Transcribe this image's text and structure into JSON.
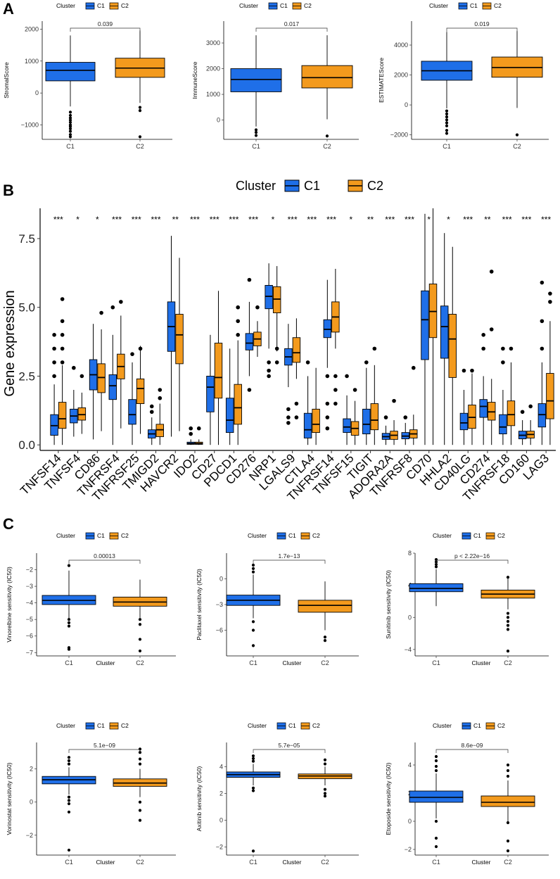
{
  "colors": {
    "C1": "#1f6fe8",
    "C2": "#f39a1d",
    "line": "#000000"
  },
  "legend": {
    "title": "Cluster",
    "labels": [
      "C1",
      "C2"
    ]
  },
  "chart_data": [
    {
      "id": "A1",
      "panel": "A",
      "type": "box",
      "ylabel": "StromalScore",
      "xlabel": "",
      "categories": [
        "C1",
        "C2"
      ],
      "ylim": [
        -1450,
        2250
      ],
      "yticks": [
        -1000,
        0,
        1000,
        2000
      ],
      "pvalue": "0.039",
      "boxes": [
        {
          "group": "C1",
          "q1": 380,
          "median": 710,
          "q3": 960,
          "lower": -420,
          "upper": 1800,
          "outliers": [
            -600,
            -700,
            -780,
            -850,
            -920,
            -1000,
            -1050,
            -1120,
            -1200,
            -1300,
            -1370
          ]
        },
        {
          "group": "C2",
          "q1": 490,
          "median": 780,
          "q3": 1090,
          "lower": -310,
          "upper": 1960,
          "outliers": [
            -450,
            -550,
            -1370
          ]
        }
      ]
    },
    {
      "id": "A2",
      "panel": "A",
      "type": "box",
      "ylabel": "ImmuneScore",
      "xlabel": "",
      "categories": [
        "C1",
        "C2"
      ],
      "ylim": [
        -750,
        3850
      ],
      "yticks": [
        0,
        1000,
        2000,
        3000
      ],
      "pvalue": "0.017",
      "boxes": [
        {
          "group": "C1",
          "q1": 1100,
          "median": 1580,
          "q3": 2000,
          "lower": -250,
          "upper": 3300,
          "outliers": [
            -380,
            -480,
            -600
          ]
        },
        {
          "group": "C2",
          "q1": 1250,
          "median": 1650,
          "q3": 2120,
          "lower": 30,
          "upper": 3300,
          "outliers": [
            -620
          ]
        }
      ]
    },
    {
      "id": "A3",
      "panel": "A",
      "type": "box",
      "ylabel": "ESTIMATEScore",
      "xlabel": "",
      "categories": [
        "C1",
        "C2"
      ],
      "ylim": [
        -2300,
        5600
      ],
      "yticks": [
        -2000,
        0,
        2000,
        4000
      ],
      "pvalue": "0.019",
      "boxes": [
        {
          "group": "C1",
          "q1": 1650,
          "median": 2280,
          "q3": 2920,
          "lower": -230,
          "upper": 4880,
          "outliers": [
            -400,
            -600,
            -800,
            -1000,
            -1200,
            -1400,
            -1700,
            -1900
          ]
        },
        {
          "group": "C2",
          "q1": 1850,
          "median": 2500,
          "q3": 3200,
          "lower": -200,
          "upper": 4950,
          "outliers": [
            -2000
          ]
        }
      ]
    },
    {
      "id": "B",
      "panel": "B",
      "type": "grouped-box",
      "ylabel": "Gene expression",
      "xlabel": "",
      "ylim": [
        -0.2,
        8.6
      ],
      "yticks": [
        0.0,
        2.5,
        5.0,
        7.5
      ],
      "genes": [
        "TNFSF14",
        "TNFSF4",
        "CD86",
        "TNFRSF4",
        "TNFRSF25",
        "TMIGD2",
        "HAVCR2",
        "IDO2",
        "CD27",
        "PDCD1",
        "CD276",
        "NRP1",
        "LGALS9",
        "CTLA4",
        "TNFRSF14",
        "TNFSF15",
        "TIGIT",
        "ADORA2A",
        "TNFRSF8",
        "CD70",
        "HHLA2",
        "CD40LG",
        "CD274",
        "TNFRSF18",
        "CD160",
        "LAG3"
      ],
      "significance": [
        "***",
        "*",
        "*",
        "***",
        "***",
        "***",
        "**",
        "***",
        "***",
        "***",
        "***",
        "*",
        "***",
        "***",
        "***",
        "*",
        "**",
        "***",
        "***",
        "*",
        "*",
        "***",
        "**",
        "***",
        "***",
        "***"
      ],
      "series": [
        {
          "name": "C1",
          "q1": [
            0.35,
            0.8,
            2.0,
            1.65,
            0.75,
            0.25,
            3.4,
            0.02,
            1.2,
            0.45,
            3.45,
            4.95,
            2.9,
            0.25,
            3.9,
            0.45,
            0.4,
            0.2,
            0.22,
            3.1,
            3.15,
            0.55,
            1.0,
            0.4,
            0.22,
            0.65
          ],
          "median": [
            0.7,
            1.05,
            2.55,
            2.15,
            1.1,
            0.4,
            4.3,
            0.05,
            2.1,
            0.9,
            3.7,
            5.4,
            3.2,
            0.55,
            4.2,
            0.65,
            0.75,
            0.3,
            0.32,
            4.55,
            4.3,
            0.8,
            1.4,
            0.65,
            0.35,
            1.1
          ],
          "q3": [
            1.1,
            1.3,
            3.1,
            2.55,
            1.65,
            0.55,
            5.2,
            0.1,
            2.5,
            1.7,
            4.05,
            5.8,
            3.5,
            1.15,
            4.55,
            0.95,
            1.3,
            0.42,
            0.45,
            5.6,
            5.05,
            1.15,
            1.65,
            1.1,
            0.5,
            1.5
          ],
          "lower": [
            0.0,
            0.3,
            0.2,
            0.0,
            0.0,
            0.0,
            0.3,
            0.0,
            0.0,
            0.0,
            2.5,
            3.5,
            2.1,
            0.0,
            2.8,
            0.0,
            0.0,
            0.0,
            0.0,
            0.0,
            0.0,
            0.0,
            0.0,
            0.0,
            0.0,
            0.0
          ],
          "upper": [
            2.2,
            2.0,
            4.4,
            4.0,
            3.0,
            1.0,
            7.6,
            0.2,
            4.0,
            3.5,
            5.2,
            6.6,
            4.4,
            2.5,
            6.0,
            1.8,
            2.8,
            0.7,
            0.8,
            8.4,
            7.7,
            2.0,
            2.5,
            2.0,
            0.9,
            3.0
          ],
          "outliers": [
            [
              2.5,
              3.0,
              3.5,
              4.0
            ],
            [
              2.8
            ],
            [],
            [
              5.0
            ],
            [
              3.3
            ],
            [
              1.2,
              1.4
            ],
            [],
            [
              0.4,
              0.6
            ],
            [],
            [],
            [
              2.0,
              6.0
            ],
            [
              2.5,
              2.7,
              3.0
            ],
            [
              0.8,
              1.0,
              1.3
            ],
            [
              3.0
            ],
            [
              0.6,
              1.0,
              1.5,
              2.5
            ],
            [
              2.5
            ],
            [
              3.0
            ],
            [
              1.0
            ],
            [
              1.0
            ],
            [],
            [],
            [
              2.7
            ],
            [
              3.5,
              4.0
            ],
            [
              3.0,
              3.5
            ],
            [
              1.2
            ],
            [
              3.5,
              4.5,
              5.9
            ]
          ]
        },
        {
          "name": "C2",
          "q1": [
            0.6,
            0.9,
            1.9,
            2.4,
            1.5,
            0.3,
            2.95,
            0.02,
            1.7,
            0.75,
            3.6,
            4.8,
            3.0,
            0.45,
            4.1,
            0.35,
            0.55,
            0.2,
            0.25,
            3.9,
            2.45,
            0.6,
            0.9,
            0.7,
            0.25,
            0.95
          ],
          "median": [
            0.95,
            1.1,
            2.45,
            2.85,
            2.05,
            0.55,
            4.0,
            0.05,
            2.45,
            1.35,
            3.85,
            5.3,
            3.35,
            0.75,
            4.65,
            0.6,
            0.9,
            0.35,
            0.4,
            4.85,
            3.85,
            1.0,
            1.2,
            1.1,
            0.38,
            1.6
          ],
          "q3": [
            1.55,
            1.35,
            2.95,
            3.3,
            2.4,
            0.75,
            4.75,
            0.1,
            3.7,
            2.2,
            4.1,
            5.75,
            3.9,
            1.3,
            5.2,
            0.85,
            1.5,
            0.5,
            0.55,
            5.85,
            4.75,
            1.45,
            1.55,
            1.6,
            0.5,
            2.6
          ],
          "lower": [
            0.0,
            0.4,
            0.5,
            0.6,
            0.4,
            0.0,
            0.5,
            0.0,
            0.0,
            0.0,
            3.2,
            3.4,
            2.4,
            0.0,
            3.5,
            0.0,
            0.0,
            0.0,
            0.0,
            0.0,
            0.0,
            0.0,
            0.0,
            0.0,
            0.0,
            0.0
          ],
          "upper": [
            2.9,
            1.9,
            4.2,
            4.7,
            3.6,
            1.5,
            6.8,
            0.2,
            5.6,
            3.8,
            4.5,
            6.5,
            4.6,
            2.8,
            6.4,
            1.6,
            2.9,
            0.9,
            1.1,
            8.6,
            7.2,
            2.6,
            2.4,
            3.0,
            0.9,
            4.5
          ],
          "outliers": [
            [
              3.0,
              3.5,
              4.0,
              4.5,
              5.3
            ],
            [
              2.5
            ],
            [
              4.8
            ],
            [
              5.2
            ],
            [
              3.5
            ],
            [
              1.7,
              2.0
            ],
            [],
            [
              0.6
            ],
            [],
            [
              4.0,
              4.5,
              5.0
            ],
            [
              5.0
            ],
            [
              3.0,
              3.5
            ],
            [
              1.0,
              1.5
            ],
            [],
            [
              1.5,
              2.0,
              2.5
            ],
            [
              2.0
            ],
            [
              3.5
            ],
            [
              1.6
            ],
            [
              2.8
            ],
            [],
            [],
            [
              2.7
            ],
            [
              4.2,
              6.3
            ],
            [
              3.5
            ],
            [
              1.4
            ],
            [
              5.2,
              5.5
            ]
          ]
        }
      ]
    },
    {
      "id": "C1",
      "panel": "C",
      "type": "box",
      "ylabel": "Vinorelbine sensitivity (IC50)",
      "xlabel": "Cluster",
      "categories": [
        "C1",
        "C2"
      ],
      "ylim": [
        -7.2,
        -1.0
      ],
      "yticks": [
        -7,
        -6,
        -5,
        -4,
        -3,
        -2
      ],
      "pvalue": "0.00013",
      "boxes": [
        {
          "group": "C1",
          "q1": -4.1,
          "median": -3.85,
          "q3": -3.55,
          "lower": -4.95,
          "upper": -2.05,
          "outliers": [
            -1.75,
            -5.0,
            -5.2,
            -5.4,
            -6.7,
            -6.8
          ]
        },
        {
          "group": "C2",
          "q1": -4.2,
          "median": -3.95,
          "q3": -3.65,
          "lower": -4.9,
          "upper": -2.6,
          "outliers": [
            -5.0,
            -5.3,
            -6.2,
            -6.9
          ]
        }
      ]
    },
    {
      "id": "C2",
      "panel": "C",
      "type": "box",
      "ylabel": "Paclitaxel sensitivity (IC50)",
      "xlabel": "Cluster",
      "categories": [
        "C1",
        "C2"
      ],
      "ylim": [
        -9.0,
        3.0
      ],
      "yticks": [
        -6,
        -3,
        0
      ],
      "pvalue": "1.7e−13",
      "boxes": [
        {
          "group": "C1",
          "q1": -3.1,
          "median": -2.5,
          "q3": -1.9,
          "lower": -4.6,
          "upper": 0.5,
          "outliers": [
            0.8,
            1.2,
            1.6,
            -5.0,
            -6.0,
            -7.8
          ]
        },
        {
          "group": "C2",
          "q1": -3.9,
          "median": -3.1,
          "q3": -2.5,
          "lower": -6.0,
          "upper": -0.3,
          "outliers": [
            -6.8,
            -7.2
          ]
        }
      ]
    },
    {
      "id": "C3",
      "panel": "C",
      "type": "box",
      "ylabel": "Sunitinib sensitivity (IC50)",
      "xlabel": "Cluster",
      "categories": [
        "C1",
        "C2"
      ],
      "ylim": [
        -4.8,
        8.0
      ],
      "yticks": [
        -4,
        0,
        4,
        8
      ],
      "pvalue": "p < 2.22e−16",
      "boxes": [
        {
          "group": "C1",
          "q1": 3.2,
          "median": 3.6,
          "q3": 4.2,
          "lower": 1.4,
          "upper": 6.0,
          "outliers": [
            6.3,
            6.6,
            6.9,
            7.2
          ]
        },
        {
          "group": "C2",
          "q1": 2.4,
          "median": 2.9,
          "q3": 3.4,
          "lower": 1.0,
          "upper": 4.8,
          "outliers": [
            5.0,
            0.5,
            0.0,
            -0.5,
            -1.0,
            -1.5,
            -4.2
          ]
        }
      ]
    },
    {
      "id": "C4",
      "panel": "C",
      "type": "box",
      "ylabel": "Vorinostat sensitivity (IC50)",
      "xlabel": "Cluster",
      "categories": [
        "C1",
        "C2"
      ],
      "ylim": [
        -3.2,
        3.6
      ],
      "yticks": [
        -2,
        0,
        2
      ],
      "pvalue": "5.1e−09",
      "boxes": [
        {
          "group": "C1",
          "q1": 1.1,
          "median": 1.35,
          "q3": 1.55,
          "lower": 0.45,
          "upper": 2.1,
          "outliers": [
            2.3,
            2.5,
            2.7,
            0.3,
            0.1,
            -0.1,
            -0.6,
            -2.9
          ]
        },
        {
          "group": "C2",
          "q1": 0.95,
          "median": 1.15,
          "q3": 1.4,
          "lower": 0.3,
          "upper": 2.0,
          "outliers": [
            2.3,
            2.6,
            3.0,
            3.2,
            0.0,
            -0.5,
            -1.1
          ]
        }
      ]
    },
    {
      "id": "C5",
      "panel": "C",
      "type": "box",
      "ylabel": "Axitinib sensitivity (IC50)",
      "xlabel": "Cluster",
      "categories": [
        "C1",
        "C2"
      ],
      "ylim": [
        -2.6,
        5.8
      ],
      "yticks": [
        -2,
        0,
        2,
        4
      ],
      "pvalue": "5.7e−05",
      "boxes": [
        {
          "group": "C1",
          "q1": 3.2,
          "median": 3.4,
          "q3": 3.6,
          "lower": 2.6,
          "upper": 4.2,
          "outliers": [
            4.4,
            4.6,
            4.8,
            2.4,
            2.2,
            -2.3
          ]
        },
        {
          "group": "C2",
          "q1": 3.1,
          "median": 3.3,
          "q3": 3.45,
          "lower": 2.6,
          "upper": 4.0,
          "outliers": [
            4.2,
            4.5,
            2.3,
            2.0,
            1.8
          ]
        }
      ]
    },
    {
      "id": "C6",
      "panel": "C",
      "type": "box",
      "ylabel": "Etoposide sensitivity (IC50)",
      "xlabel": "Cluster",
      "categories": [
        "C1",
        "C2"
      ],
      "ylim": [
        -2.4,
        5.6
      ],
      "yticks": [
        -2,
        0,
        2,
        4
      ],
      "pvalue": "8.6e−09",
      "boxes": [
        {
          "group": "C1",
          "q1": 1.35,
          "median": 1.7,
          "q3": 2.15,
          "lower": 0.2,
          "upper": 3.4,
          "outliers": [
            3.6,
            3.9,
            4.3,
            4.6,
            0.0,
            -1.2,
            -1.8
          ]
        },
        {
          "group": "C2",
          "q1": 1.05,
          "median": 1.35,
          "q3": 1.8,
          "lower": 0.0,
          "upper": 2.9,
          "outliers": [
            3.2,
            3.6,
            4.0,
            -0.1,
            -1.4,
            -2.1
          ]
        }
      ]
    }
  ],
  "panel_letters": [
    "A",
    "B",
    "C"
  ]
}
